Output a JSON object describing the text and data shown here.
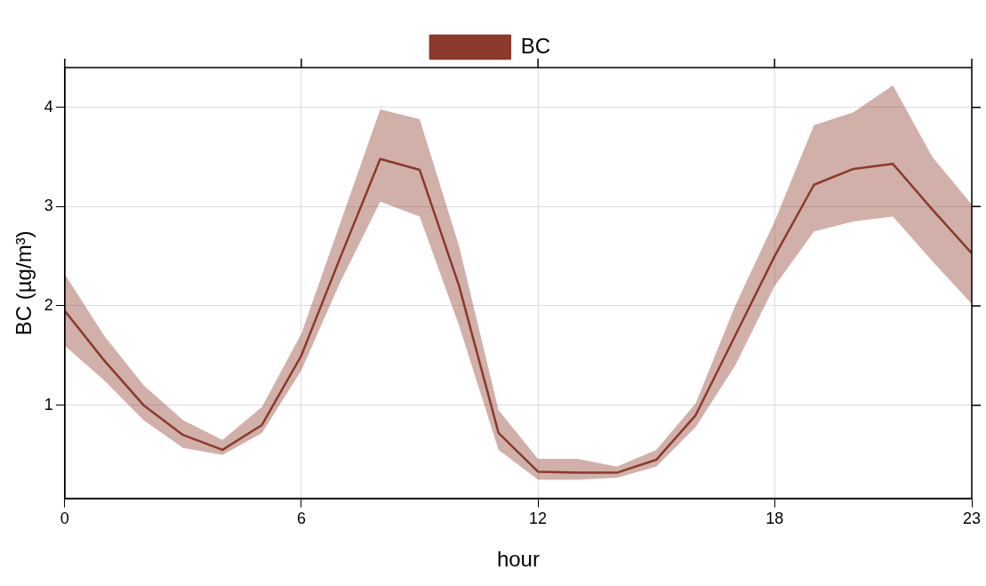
{
  "chart_data": {
    "type": "line",
    "xlabel": "hour",
    "ylabel": "BC (µg/m³)",
    "x": [
      0,
      1,
      2,
      3,
      4,
      5,
      6,
      7,
      8,
      9,
      10,
      11,
      12,
      13,
      14,
      15,
      16,
      17,
      18,
      19,
      20,
      21,
      22,
      23
    ],
    "series": [
      {
        "name": "BC",
        "color": "#8b3a2b",
        "values": [
          1.95,
          1.45,
          1.0,
          0.7,
          0.55,
          0.8,
          1.5,
          2.5,
          3.48,
          3.37,
          2.2,
          0.72,
          0.33,
          0.32,
          0.32,
          0.45,
          0.9,
          1.7,
          2.5,
          3.22,
          3.38,
          3.43,
          2.97,
          2.53
        ],
        "lower": [
          1.6,
          1.25,
          0.85,
          0.57,
          0.5,
          0.72,
          1.35,
          2.25,
          3.05,
          2.9,
          1.8,
          0.55,
          0.25,
          0.25,
          0.27,
          0.38,
          0.78,
          1.4,
          2.2,
          2.75,
          2.85,
          2.9,
          2.45,
          2.02
        ],
        "upper": [
          2.32,
          1.7,
          1.2,
          0.85,
          0.65,
          0.98,
          1.72,
          2.85,
          3.98,
          3.88,
          2.6,
          0.95,
          0.46,
          0.46,
          0.38,
          0.55,
          1.02,
          2.0,
          2.85,
          3.82,
          3.95,
          4.22,
          3.5,
          3.02
        ]
      }
    ],
    "xlim": [
      0,
      23
    ],
    "xticks": [
      0,
      6,
      12,
      18,
      23
    ],
    "ylim": [
      0.06,
      4.4
    ],
    "yticks": [
      1,
      2,
      3,
      4
    ],
    "grid": true,
    "legend": "top",
    "marker": "none",
    "line_style": "solid"
  }
}
